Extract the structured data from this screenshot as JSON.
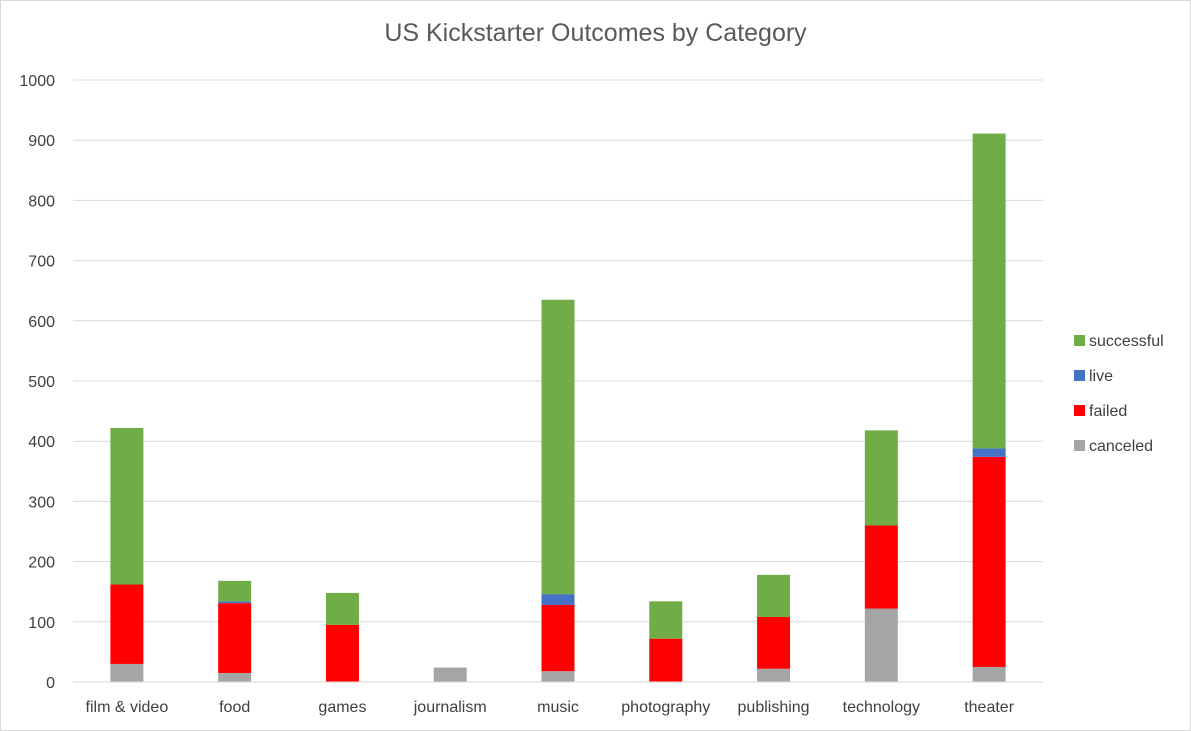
{
  "chart_data": {
    "type": "bar",
    "stacked": true,
    "title": "US Kickstarter Outcomes by Category",
    "xlabel": "",
    "ylabel": "",
    "ylim": [
      0,
      1000
    ],
    "yticks": [
      0,
      100,
      200,
      300,
      400,
      500,
      600,
      700,
      800,
      900,
      1000
    ],
    "grid": true,
    "legend_position": "right",
    "categories": [
      "film & video",
      "food",
      "games",
      "journalism",
      "music",
      "photography",
      "publishing",
      "technology",
      "theater"
    ],
    "series": [
      {
        "name": "canceled",
        "color": "#a5a5a5",
        "values": [
          30,
          15,
          0,
          24,
          18,
          0,
          22,
          122,
          25
        ]
      },
      {
        "name": "failed",
        "color": "#ff0000",
        "values": [
          132,
          116,
          95,
          0,
          110,
          72,
          86,
          138,
          349
        ]
      },
      {
        "name": "live",
        "color": "#4472c4",
        "values": [
          0,
          3,
          0,
          0,
          18,
          0,
          0,
          0,
          14
        ]
      },
      {
        "name": "successful",
        "color": "#70ad47",
        "values": [
          260,
          34,
          53,
          0,
          489,
          62,
          70,
          158,
          523
        ]
      }
    ]
  }
}
